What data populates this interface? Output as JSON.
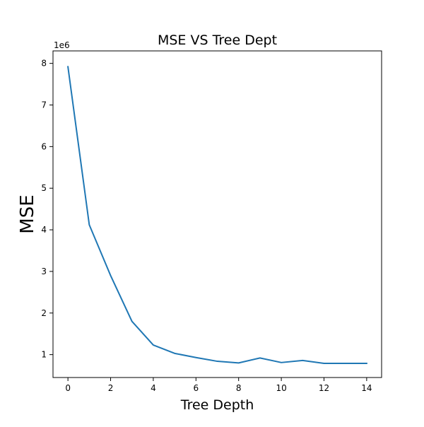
{
  "chart_data": {
    "type": "line",
    "title": "MSE VS Tree Dept",
    "xlabel": "Tree Depth",
    "ylabel": "MSE",
    "y_offset_label": "1e6",
    "xlim": [
      -0.7,
      14.7
    ],
    "ylim": [
      0.45,
      8.3
    ],
    "x_ticks": [
      0,
      2,
      4,
      6,
      8,
      10,
      12,
      14
    ],
    "y_ticks": [
      1,
      2,
      3,
      4,
      5,
      6,
      7,
      8
    ],
    "grid": false,
    "series": [
      {
        "color": "#1f77b4",
        "x": [
          0,
          1,
          2,
          3,
          4,
          5,
          6,
          7,
          8,
          9,
          10,
          11,
          12,
          13,
          14
        ],
        "y": [
          7.92,
          4.12,
          2.9,
          1.8,
          1.23,
          1.03,
          0.93,
          0.84,
          0.8,
          0.92,
          0.81,
          0.86,
          0.79,
          0.79,
          0.79
        ]
      }
    ]
  }
}
